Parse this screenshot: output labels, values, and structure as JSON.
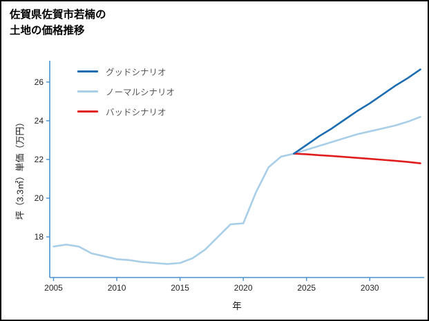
{
  "title": {
    "line1": "佐賀県佐賀市若楠の",
    "line2": "土地の価格推移"
  },
  "chart_data": {
    "type": "line",
    "title": "佐賀県佐賀市若楠の土地の価格推移",
    "xlabel": "年",
    "ylabel": "坪（3.3㎡）単価（万円）",
    "xlim": [
      2004.7,
      2034.3
    ],
    "ylim": [
      15.9,
      27.1
    ],
    "xticks": [
      2005,
      2010,
      2015,
      2020,
      2025,
      2030
    ],
    "yticks": [
      18,
      20,
      22,
      24,
      26
    ],
    "grid": false,
    "legend_position": "upper-left",
    "axis_color": "#4a8fce",
    "tick_label_color": "#222222",
    "legend": [
      {
        "label": "グッドシナリオ",
        "color": "#1b6cb0"
      },
      {
        "label": "ノーマルシナリオ",
        "color": "#a8cee8"
      },
      {
        "label": "バッドシナリオ",
        "color": "#e11c1c"
      }
    ],
    "series": [
      {
        "name": "ノーマルシナリオ",
        "color": "#a8cee8",
        "x": [
          2005,
          2006,
          2007,
          2008,
          2009,
          2010,
          2011,
          2012,
          2013,
          2014,
          2015,
          2016,
          2017,
          2018,
          2019,
          2020,
          2021,
          2022,
          2023,
          2024,
          2025,
          2026,
          2027,
          2028,
          2029,
          2030,
          2031,
          2032,
          2033,
          2034
        ],
        "y": [
          17.5,
          17.6,
          17.5,
          17.15,
          17.0,
          16.85,
          16.8,
          16.7,
          16.65,
          16.6,
          16.65,
          16.9,
          17.35,
          18.0,
          18.65,
          18.7,
          20.3,
          21.6,
          22.15,
          22.3,
          22.5,
          22.7,
          22.9,
          23.1,
          23.3,
          23.45,
          23.6,
          23.75,
          23.95,
          24.2
        ]
      },
      {
        "name": "バッドシナリオ",
        "color": "#e11c1c",
        "x": [
          2024,
          2025,
          2026,
          2027,
          2028,
          2029,
          2030,
          2031,
          2032,
          2033,
          2034
        ],
        "y": [
          22.3,
          22.27,
          22.22,
          22.18,
          22.13,
          22.08,
          22.03,
          21.98,
          21.93,
          21.87,
          21.8
        ]
      },
      {
        "name": "グッドシナリオ",
        "color": "#1b6cb0",
        "x": [
          2024,
          2025,
          2026,
          2027,
          2028,
          2029,
          2030,
          2031,
          2032,
          2033,
          2034
        ],
        "y": [
          22.3,
          22.75,
          23.2,
          23.6,
          24.05,
          24.5,
          24.9,
          25.35,
          25.8,
          26.2,
          26.65
        ]
      }
    ]
  }
}
